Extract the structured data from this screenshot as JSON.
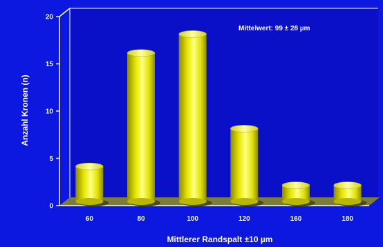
{
  "colors": {
    "background": "#0c17e0",
    "plot_back": "#0a10c8",
    "floor": "#7d7d3a",
    "bar": "#e8e800",
    "axis": "#ffffff"
  },
  "chart_data": {
    "type": "bar",
    "title": "",
    "xlabel": "Mittlerer Randspalt ±10 µm",
    "ylabel": "Anzahl Kronen (n)",
    "annotation": "Mittelwert: 99 ± 28 µm",
    "categories": [
      "60",
      "80",
      "100",
      "120",
      "160",
      "180"
    ],
    "values": [
      4,
      16,
      18,
      8,
      2,
      2
    ],
    "ylim": [
      0,
      20
    ],
    "yticks": [
      0,
      5,
      10,
      15,
      20
    ],
    "grid": false,
    "legend": "none"
  }
}
